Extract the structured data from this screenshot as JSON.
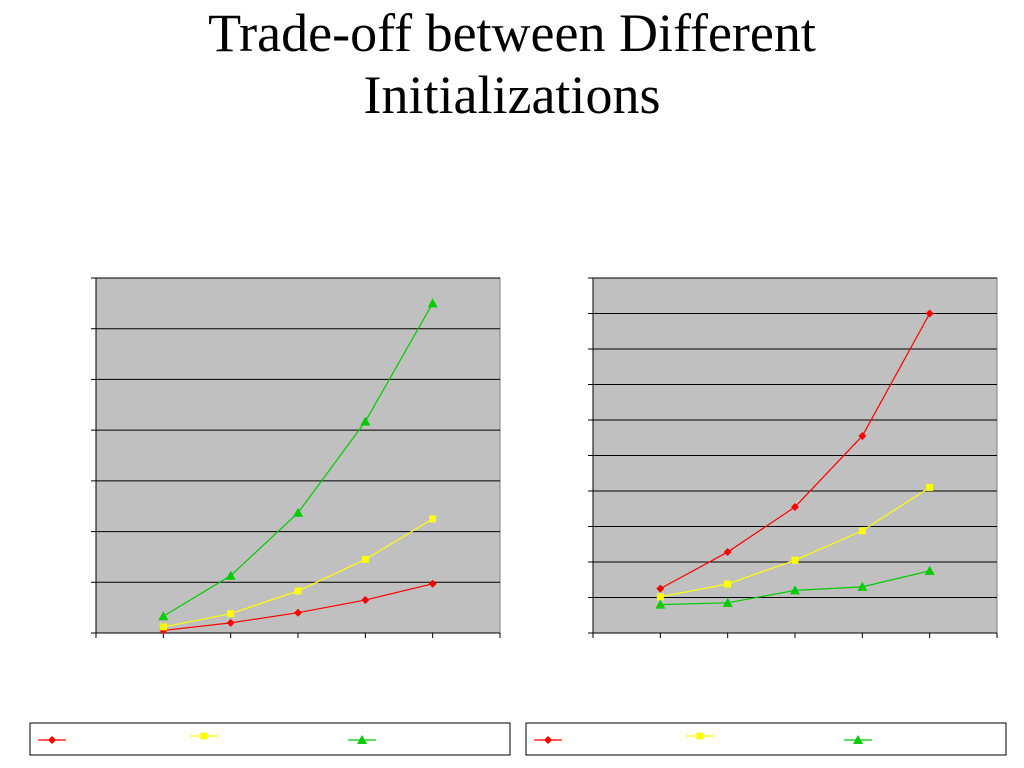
{
  "slide": {
    "title_line1": "Trade-off between Different",
    "title_line2": "Initializations"
  },
  "colors": {
    "plot_background": "#c0c0c0",
    "gridline": "#000000",
    "series_red": "#ff0000",
    "series_yellow": "#ffff00",
    "series_green": "#00cc00"
  },
  "chart_data": [
    {
      "type": "line",
      "title": "",
      "xlabel": "",
      "ylabel": "",
      "x": [
        1,
        2,
        3,
        4,
        5
      ],
      "ylim": [
        0,
        7
      ],
      "grid": true,
      "legend_placement": "bottom",
      "series": [
        {
          "color": "#ff0000",
          "marker": "diamond",
          "values": [
            0.05,
            0.2,
            0.4,
            0.65,
            0.97
          ]
        },
        {
          "color": "#ffff00",
          "marker": "square",
          "values": [
            0.12,
            0.38,
            0.83,
            1.45,
            2.25
          ]
        },
        {
          "color": "#00cc00",
          "marker": "triangle",
          "values": [
            0.33,
            1.13,
            2.37,
            4.17,
            6.5
          ]
        }
      ]
    },
    {
      "type": "line",
      "title": "",
      "xlabel": "",
      "ylabel": "",
      "x": [
        1,
        2,
        3,
        4,
        5
      ],
      "ylim": [
        0,
        10
      ],
      "grid": true,
      "legend_placement": "bottom",
      "series": [
        {
          "color": "#ff0000",
          "marker": "diamond",
          "values": [
            1.25,
            2.28,
            3.55,
            5.55,
            9.0
          ]
        },
        {
          "color": "#ffff00",
          "marker": "square",
          "values": [
            1.02,
            1.38,
            2.05,
            2.88,
            4.1
          ]
        },
        {
          "color": "#00cc00",
          "marker": "triangle",
          "values": [
            0.8,
            0.85,
            1.2,
            1.3,
            1.75
          ]
        }
      ]
    }
  ]
}
